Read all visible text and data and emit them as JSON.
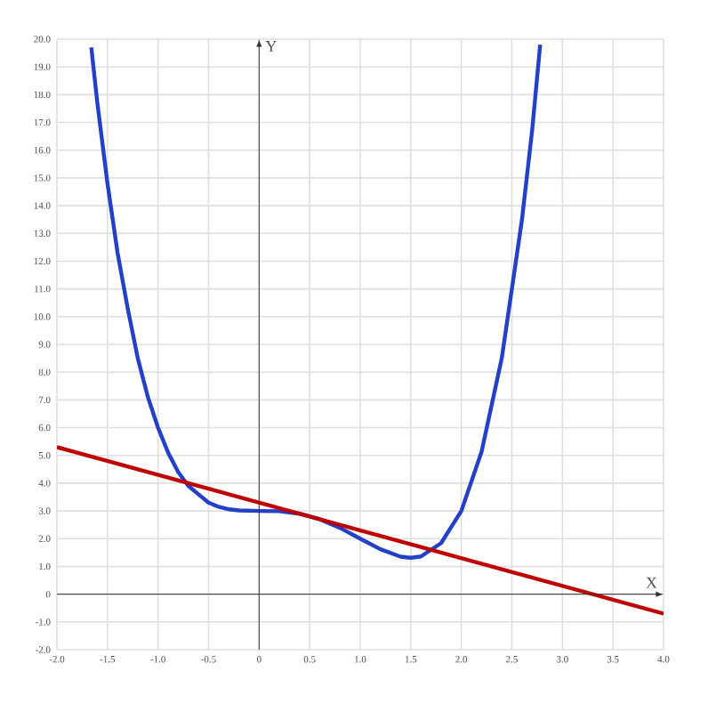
{
  "chart_data": {
    "type": "line",
    "xlabel": "X",
    "ylabel": "Y",
    "xlim": [
      -2,
      4
    ],
    "ylim": [
      -2,
      20
    ],
    "grid": true,
    "xticks": [
      {
        "value": -2,
        "label": "-2.0"
      },
      {
        "value": -1.5,
        "label": "-1.5"
      },
      {
        "value": -1,
        "label": "-1.0"
      },
      {
        "value": -0.5,
        "label": "-0.5"
      },
      {
        "value": 0,
        "label": "0"
      },
      {
        "value": 0.5,
        "label": "0.5"
      },
      {
        "value": 1,
        "label": "1.0"
      },
      {
        "value": 1.5,
        "label": "1.5"
      },
      {
        "value": 2,
        "label": "2.0"
      },
      {
        "value": 2.5,
        "label": "2.5"
      },
      {
        "value": 3,
        "label": "3.0"
      },
      {
        "value": 3.5,
        "label": "3.5"
      },
      {
        "value": 4,
        "label": "4.0"
      }
    ],
    "yticks": [
      {
        "value": -2,
        "label": "-2.0"
      },
      {
        "value": -1,
        "label": "-1.0"
      },
      {
        "value": 0,
        "label": "0"
      },
      {
        "value": 1,
        "label": "1.0"
      },
      {
        "value": 2,
        "label": "2.0"
      },
      {
        "value": 3,
        "label": "3.0"
      },
      {
        "value": 4,
        "label": "4.0"
      },
      {
        "value": 5,
        "label": "5.0"
      },
      {
        "value": 6,
        "label": "6.0"
      },
      {
        "value": 7,
        "label": "7.0"
      },
      {
        "value": 8,
        "label": "8.0"
      },
      {
        "value": 9,
        "label": "9.0"
      },
      {
        "value": 10,
        "label": "10.0"
      },
      {
        "value": 11,
        "label": "11.0"
      },
      {
        "value": 12,
        "label": "12.0"
      },
      {
        "value": 13,
        "label": "13.0"
      },
      {
        "value": 14,
        "label": "14.0"
      },
      {
        "value": 15,
        "label": "15.0"
      },
      {
        "value": 16,
        "label": "16.0"
      },
      {
        "value": 17,
        "label": "17.0"
      },
      {
        "value": 18,
        "label": "18.0"
      },
      {
        "value": 19,
        "label": "19.0"
      },
      {
        "value": 20,
        "label": "20.0"
      }
    ],
    "series": [
      {
        "color": "#2240c8",
        "x": [
          -1.66,
          -1.6,
          -1.5,
          -1.4,
          -1.3,
          -1.2,
          -1.1,
          -1.0,
          -0.9,
          -0.8,
          -0.7,
          -0.6,
          -0.5,
          -0.4,
          -0.3,
          -0.2,
          0,
          0.2,
          0.4,
          0.6,
          0.8,
          1.0,
          1.2,
          1.4,
          1.5,
          1.6,
          1.8,
          2.0,
          2.2,
          2.4,
          2.6,
          2.7,
          2.78
        ],
        "values": [
          19.7,
          17.7,
          14.8,
          12.3,
          10.3,
          8.5,
          7.1,
          6.0,
          5.1,
          4.4,
          3.9,
          3.6,
          3.3,
          3.15,
          3.06,
          3.02,
          3.0,
          2.99,
          2.9,
          2.7,
          2.39,
          2.0,
          1.62,
          1.35,
          1.31,
          1.36,
          1.84,
          3.0,
          5.13,
          8.5,
          13.5,
          16.7,
          19.8
        ]
      },
      {
        "color": "#c00000",
        "x": [
          -2,
          4
        ],
        "values": [
          5.3,
          -0.7
        ]
      }
    ]
  }
}
